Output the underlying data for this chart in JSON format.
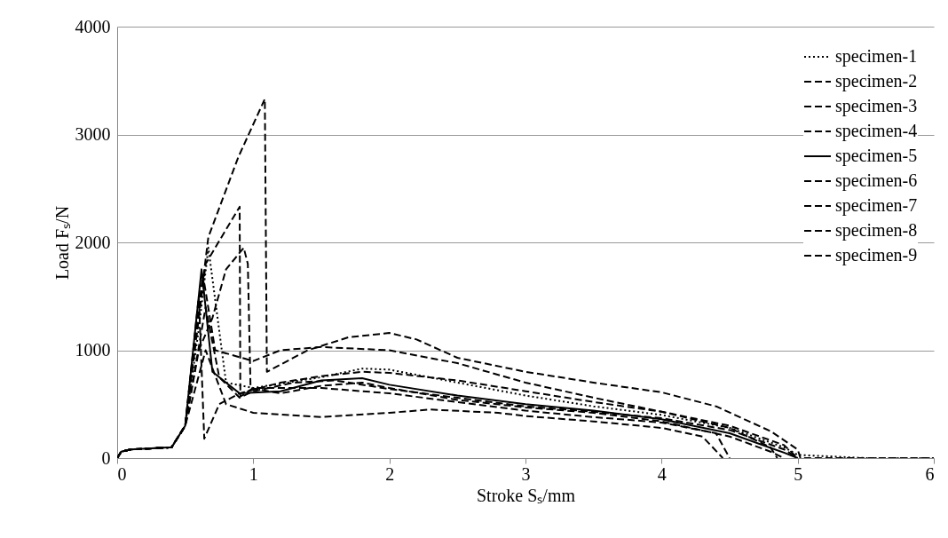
{
  "chart_data": {
    "type": "line",
    "xlabel": "Stroke Sₛ/mm",
    "ylabel": "Load Fₛ/N",
    "xlim": [
      0,
      6
    ],
    "xticks": [
      0,
      1,
      2,
      3,
      4,
      5,
      6
    ],
    "ylim": [
      0,
      4000
    ],
    "yticks": [
      0,
      1000,
      2000,
      3000,
      4000
    ],
    "grid": "y",
    "legend": "top right",
    "series": [
      {
        "name": "specimen-1",
        "color": "#000000",
        "line_style": "dotted",
        "x": [
          0,
          0.03,
          0.1,
          0.4,
          0.5,
          0.6,
          0.67,
          0.8,
          1.0,
          1.5,
          1.8,
          2.0,
          2.5,
          3,
          3.5,
          4,
          4.5,
          4.9,
          5.0,
          5.5,
          6
        ],
        "values": [
          0,
          60,
          80,
          100,
          300,
          1200,
          1950,
          700,
          650,
          750,
          830,
          820,
          700,
          580,
          480,
          400,
          280,
          100,
          30,
          0,
          0
        ]
      },
      {
        "name": "specimen-2",
        "color": "#000000",
        "line_style": "dashed",
        "x": [
          0,
          0.03,
          0.1,
          0.4,
          0.5,
          0.58,
          0.63,
          0.72,
          1.0,
          1.2,
          1.5,
          2.0,
          2.5,
          3,
          3.5,
          4,
          4.5,
          4.8,
          4.85
        ],
        "values": [
          0,
          60,
          80,
          100,
          300,
          1200,
          1700,
          1000,
          900,
          1000,
          1030,
          1000,
          880,
          700,
          560,
          430,
          280,
          100,
          0
        ]
      },
      {
        "name": "specimen-3",
        "color": "#000000",
        "line_style": "dashed",
        "x": [
          0,
          0.03,
          0.1,
          0.4,
          0.5,
          0.6,
          0.7,
          0.8,
          0.93,
          0.96,
          0.98,
          1.2,
          1.5,
          1.8,
          2.0,
          2.5,
          3,
          3.5,
          4,
          4.5,
          4.8,
          4.9
        ],
        "values": [
          0,
          60,
          80,
          100,
          300,
          1000,
          1300,
          1750,
          1950,
          1800,
          650,
          600,
          670,
          700,
          650,
          540,
          470,
          420,
          340,
          200,
          60,
          0
        ]
      },
      {
        "name": "specimen-4",
        "color": "#000000",
        "line_style": "dashed",
        "x": [
          0,
          0.03,
          0.1,
          0.4,
          0.5,
          0.65,
          0.75,
          0.9,
          1.0,
          1.3,
          1.6,
          2.0,
          2.5,
          3,
          3.5,
          4,
          4.5,
          4.9,
          5.0
        ],
        "values": [
          0,
          60,
          80,
          100,
          300,
          1400,
          750,
          560,
          620,
          700,
          720,
          640,
          560,
          480,
          430,
          370,
          260,
          80,
          0
        ]
      },
      {
        "name": "specimen-5",
        "color": "#000000",
        "line_style": "solid",
        "x": [
          0,
          0.03,
          0.1,
          0.4,
          0.5,
          0.62,
          0.7,
          0.9,
          1.2,
          1.5,
          1.8,
          2.0,
          2.5,
          3,
          3.5,
          4,
          4.5,
          4.9,
          5.0
        ],
        "values": [
          0,
          60,
          80,
          100,
          300,
          1750,
          800,
          600,
          620,
          720,
          740,
          680,
          580,
          500,
          440,
          360,
          230,
          50,
          0
        ]
      },
      {
        "name": "specimen-6",
        "color": "#000000",
        "line_style": "dashed",
        "x": [
          0,
          0.03,
          0.1,
          0.4,
          0.5,
          0.67,
          0.89,
          1.085,
          1.1,
          1.4,
          1.7,
          2.0,
          2.2,
          2.5,
          3,
          3.5,
          4,
          4.4,
          4.8,
          5.0,
          5.02,
          6
        ],
        "values": [
          0,
          60,
          80,
          100,
          300,
          2050,
          2790,
          3330,
          800,
          1000,
          1120,
          1160,
          1100,
          930,
          800,
          700,
          610,
          480,
          250,
          80,
          0,
          0
        ]
      },
      {
        "name": "specimen-7",
        "color": "#000000",
        "line_style": "dashed",
        "x": [
          0,
          0.03,
          0.1,
          0.4,
          0.5,
          0.65,
          0.72,
          0.9,
          0.905,
          1.0,
          1.5,
          2.0,
          2.5,
          3,
          3.5,
          4,
          4.4,
          4.5
        ],
        "values": [
          0,
          60,
          80,
          100,
          300,
          1800,
          1950,
          2330,
          570,
          650,
          650,
          600,
          520,
          440,
          380,
          330,
          230,
          0
        ]
      },
      {
        "name": "specimen-8",
        "color": "#000000",
        "line_style": "dashed",
        "x": [
          0,
          0.03,
          0.1,
          0.4,
          0.5,
          0.6,
          0.64,
          0.75,
          0.9,
          1.2,
          1.5,
          1.8,
          2.0,
          2.5,
          3,
          3.5,
          4,
          4.5,
          4.9,
          5.0
        ],
        "values": [
          0,
          60,
          80,
          100,
          300,
          1500,
          180,
          500,
          600,
          700,
          760,
          800,
          790,
          720,
          620,
          520,
          430,
          300,
          120,
          0
        ]
      },
      {
        "name": "specimen-9",
        "color": "#000000",
        "line_style": "dashed",
        "x": [
          0,
          0.03,
          0.1,
          0.4,
          0.5,
          0.65,
          0.8,
          1.0,
          1.5,
          2.0,
          2.3,
          2.8,
          3,
          3.5,
          4,
          4.3,
          4.45
        ],
        "values": [
          0,
          60,
          80,
          100,
          300,
          1000,
          500,
          420,
          380,
          420,
          450,
          420,
          390,
          340,
          280,
          200,
          0
        ]
      }
    ]
  }
}
